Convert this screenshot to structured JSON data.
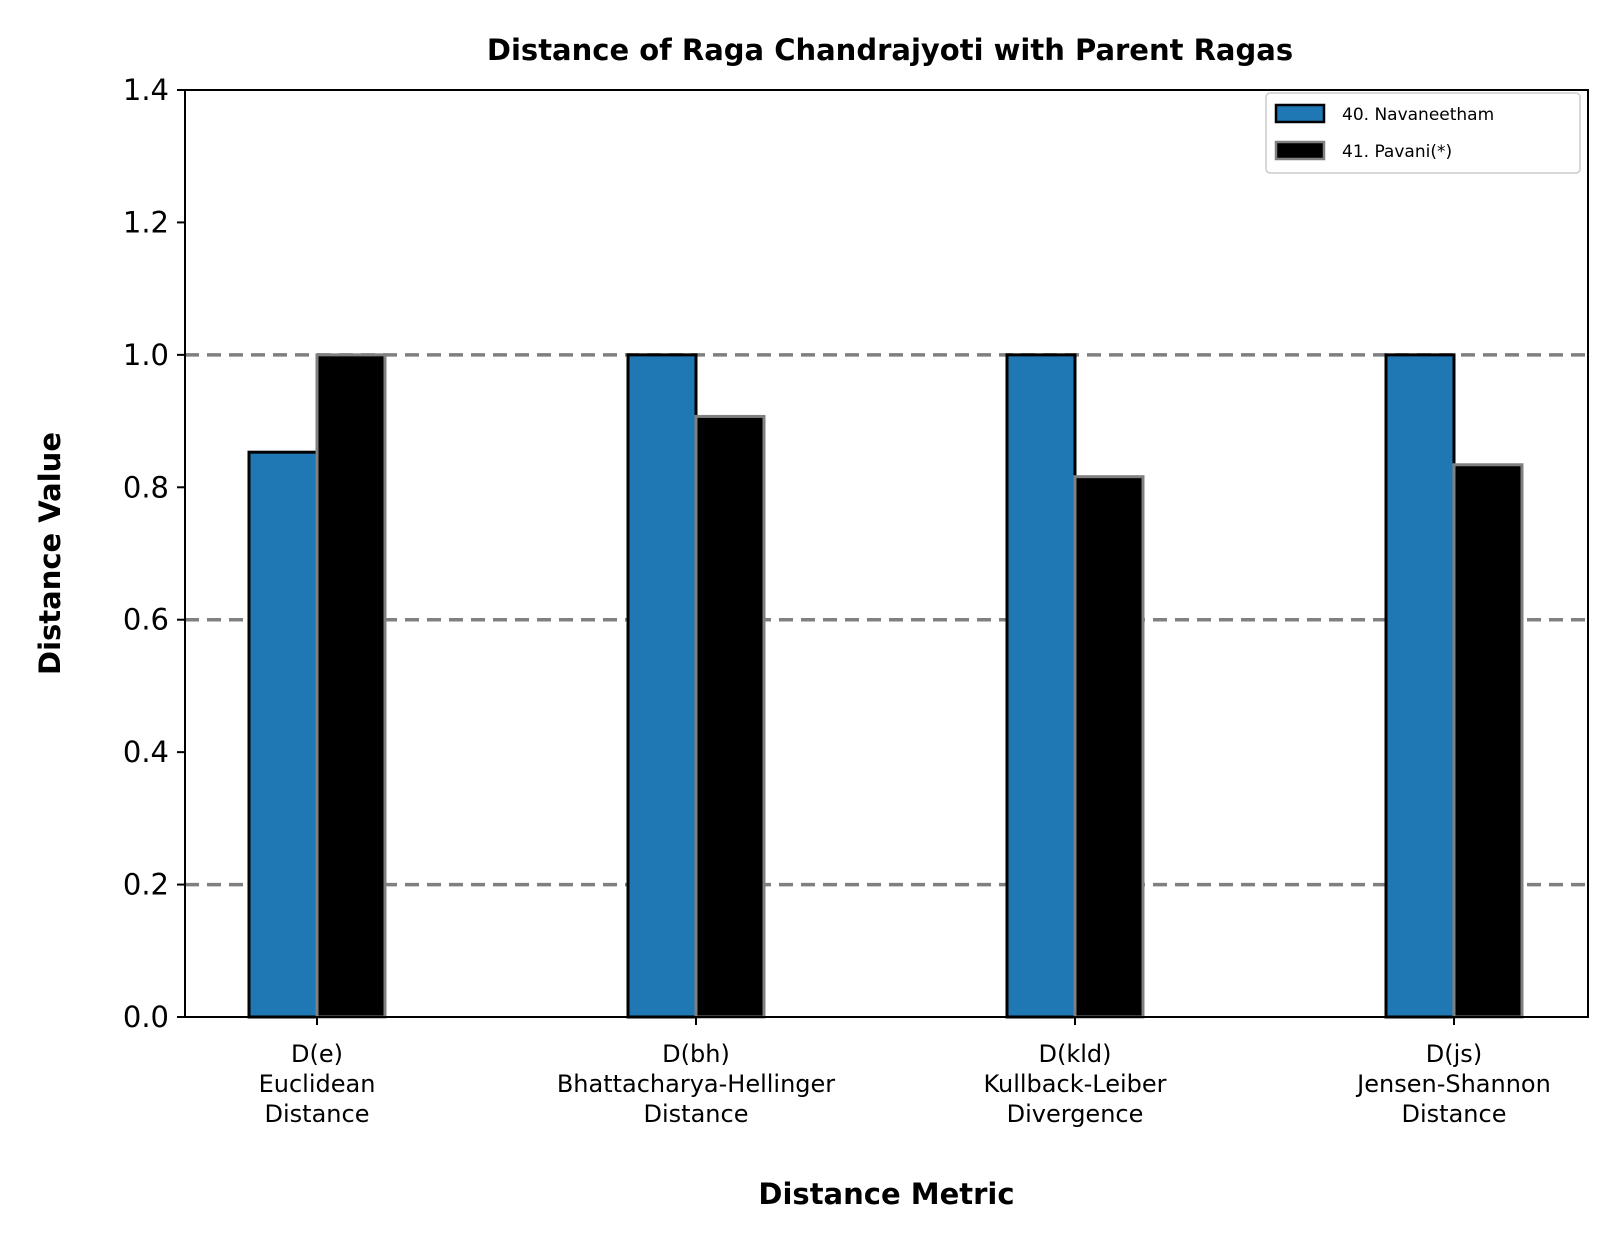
{
  "chart_data": {
    "type": "bar",
    "title": "Distance of Raga Chandrajyoti with Parent Ragas",
    "xlabel": "Distance Metric",
    "ylabel": "Distance Value",
    "ylim": [
      0,
      1.4
    ],
    "yticks": [
      "0.0",
      "0.2",
      "0.4",
      "0.6",
      "0.8",
      "1.0",
      "1.2",
      "1.4"
    ],
    "reference_lines": [
      0.2,
      0.6,
      1.0
    ],
    "grid": false,
    "legend_position": "top-right",
    "categories": [
      [
        "D(e)",
        "Euclidean",
        "Distance"
      ],
      [
        "D(bh)",
        "Bhattacharya-Hellinger",
        "Distance"
      ],
      [
        "D(kld)",
        "Kullback-Leiber",
        "Divergence"
      ],
      [
        "D(js)",
        "Jensen-Shannon",
        "Distance"
      ]
    ],
    "series": [
      {
        "name": "40. Navaneetham",
        "color": "#1f77b4",
        "edge_color": "#000000",
        "values": [
          0.853,
          1.0,
          1.0,
          1.0
        ]
      },
      {
        "name": "41. Pavani(*)",
        "color": "#000000",
        "edge_color": "#808080",
        "values": [
          1.0,
          0.907,
          0.816,
          0.834
        ]
      }
    ],
    "reference_line_color": "#808080"
  }
}
